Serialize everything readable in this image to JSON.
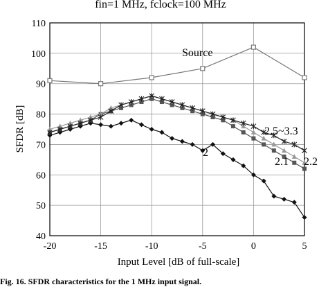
{
  "chart_data": {
    "type": "line",
    "title": "fin=1 MHz,  fclock=100 MHz",
    "xlabel": "Input Level [dB of full-scale]",
    "ylabel": "SFDR [dB]",
    "xlim": [
      -20,
      5
    ],
    "ylim": [
      40,
      110
    ],
    "xticks": [
      -20,
      -15,
      -10,
      -5,
      0,
      5
    ],
    "yticks": [
      40,
      50,
      60,
      70,
      80,
      90,
      100,
      110
    ],
    "grid": true,
    "series": [
      {
        "name": "Source",
        "color": "#777777",
        "marker": "square-open",
        "x": [
          -20,
          -15,
          -10,
          -5,
          0,
          5
        ],
        "y": [
          91,
          90,
          92,
          95,
          102,
          92
        ]
      },
      {
        "name": "2",
        "color": "#111111",
        "marker": "diamond",
        "x": [
          -20,
          -19,
          -18,
          -17,
          -16,
          -15,
          -14,
          -13,
          -12,
          -11,
          -10,
          -9,
          -8,
          -7,
          -6,
          -5,
          -4,
          -3,
          -2,
          -1,
          0,
          1,
          2,
          3,
          4,
          5
        ],
        "y": [
          73,
          74,
          75,
          76,
          77,
          76.5,
          76,
          77,
          78,
          76.5,
          75,
          74,
          72,
          71,
          70,
          68,
          70,
          67,
          65,
          63,
          60,
          58,
          53,
          52,
          51,
          46
        ]
      },
      {
        "name": "2.1",
        "color": "#555555",
        "marker": "square",
        "x": [
          -20,
          -19,
          -18,
          -17,
          -16,
          -15,
          -14,
          -13,
          -12,
          -11,
          -10,
          -9,
          -8,
          -7,
          -6,
          -5,
          -4,
          -3,
          -2,
          -1,
          0,
          1,
          2,
          3,
          4,
          5
        ],
        "y": [
          74,
          75,
          76,
          77,
          78,
          80,
          81,
          82,
          83,
          84,
          85,
          84,
          83,
          82,
          81,
          80,
          79,
          78,
          76,
          74,
          72,
          70,
          68,
          66,
          64,
          62
        ]
      },
      {
        "name": "2.2",
        "color": "#999999",
        "marker": "triangle",
        "x": [
          -20,
          -19,
          -18,
          -17,
          -16,
          -15,
          -14,
          -13,
          -12,
          -11,
          -10,
          -9,
          -8,
          -7,
          -6,
          -5,
          -4,
          -3,
          -2,
          -1,
          0,
          1,
          2,
          3,
          4,
          5
        ],
        "y": [
          75,
          76,
          77,
          78,
          79,
          80,
          82,
          83,
          84,
          85,
          86,
          85,
          84,
          83,
          82,
          81,
          80,
          79,
          78,
          76,
          74,
          72,
          70,
          68,
          66,
          64
        ]
      },
      {
        "name": "2.5~3.3",
        "color": "#222222",
        "marker": "star",
        "x": [
          -20,
          -19,
          -18,
          -17,
          -16,
          -15,
          -14,
          -13,
          -12,
          -11,
          -10,
          -9,
          -8,
          -7,
          -6,
          -5,
          -4,
          -3,
          -2,
          -1,
          0,
          1,
          2,
          3,
          4,
          5
        ],
        "y": [
          74,
          75,
          76,
          77,
          78,
          79,
          81,
          83,
          84,
          85,
          86,
          85,
          84,
          83,
          82,
          81,
          80,
          79,
          78,
          77,
          76,
          74,
          73,
          71,
          70,
          68
        ]
      }
    ],
    "annotations": [
      "Source",
      "2",
      "2.1",
      "2.2",
      "2.5~3.3"
    ]
  },
  "caption": "Fig. 16.   SFDR characteristics for the 1 MHz input signal."
}
